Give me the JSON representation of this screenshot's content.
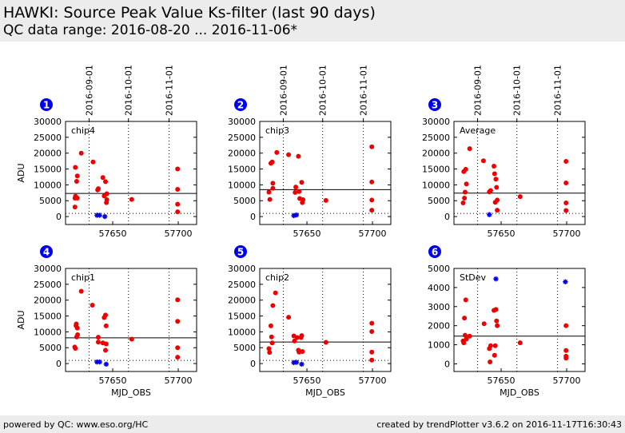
{
  "header": {
    "title": "HAWKI: Source Peak Value Ks-filter (last 90 days)",
    "subtitle": "QC data range: 2016-08-20 ... 2016-11-06*"
  },
  "footer": {
    "left": "powered by QC: www.eso.org/HC",
    "right": "created by trendPlotter v3.6.2 on 2016-11-17T16:30:43"
  },
  "colors": {
    "point": "#ee0000",
    "special_point": "#0000ee",
    "badge": "#0000ee",
    "header_bg": "#ececec"
  },
  "chart_data": {
    "type": "scatter",
    "xlabel": "MJD_OBS",
    "xlim": [
      57614,
      57714
    ],
    "x_ticks": [
      57650,
      57700
    ],
    "top_axis_dates": [
      {
        "label": "2016-09-01",
        "mjd": 57632
      },
      {
        "label": "2016-10-01",
        "mjd": 57662
      },
      {
        "label": "2016-11-01",
        "mjd": 57693
      }
    ],
    "grid": "dotted vertical lines at month starts",
    "panels": [
      {
        "number": "1",
        "label": "chip4",
        "ylabel": "ADU",
        "ylim": [
          -2500,
          30000
        ],
        "y_ticks": [
          0,
          5000,
          10000,
          15000,
          20000,
          25000,
          30000
        ],
        "reference_line": 7300,
        "dotted_line": 1000,
        "points": [
          {
            "x": 57621.2,
            "y": 3000
          },
          {
            "x": 57621.2,
            "y": 5800
          },
          {
            "x": 57621.5,
            "y": 15500
          },
          {
            "x": 57621.6,
            "y": 6400
          },
          {
            "x": 57622.5,
            "y": 11100
          },
          {
            "x": 57623,
            "y": 12800
          },
          {
            "x": 57623,
            "y": 5800
          },
          {
            "x": 57626,
            "y": 20000
          },
          {
            "x": 57635,
            "y": 17200
          },
          {
            "x": 57638.5,
            "y": 8400
          },
          {
            "x": 57639,
            "y": 8800
          },
          {
            "x": 57642.5,
            "y": 12300
          },
          {
            "x": 57643.5,
            "y": 6500
          },
          {
            "x": 57644.5,
            "y": 11000
          },
          {
            "x": 57645.2,
            "y": 4400
          },
          {
            "x": 57645.5,
            "y": 5300
          },
          {
            "x": 57645.5,
            "y": 7200
          },
          {
            "x": 57664.5,
            "y": 5400
          },
          {
            "x": 57699.5,
            "y": 15000
          },
          {
            "x": 57699.5,
            "y": 8600
          },
          {
            "x": 57699.5,
            "y": 3900
          },
          {
            "x": 57699.5,
            "y": 1500
          }
        ],
        "special_points": [
          {
            "x": 57638,
            "y": 400
          },
          {
            "x": 57640,
            "y": 400
          },
          {
            "x": 57644,
            "y": 0
          }
        ]
      },
      {
        "number": "2",
        "label": "chip3",
        "ylabel": "",
        "ylim": [
          -2500,
          30000
        ],
        "y_ticks": [
          0,
          5000,
          10000,
          15000,
          20000,
          25000,
          30000
        ],
        "reference_line": 8500,
        "dotted_line": 1000,
        "points": [
          {
            "x": 57621,
            "y": 7700
          },
          {
            "x": 57621.7,
            "y": 5400
          },
          {
            "x": 57622.5,
            "y": 16800
          },
          {
            "x": 57623.5,
            "y": 17200
          },
          {
            "x": 57624,
            "y": 10500
          },
          {
            "x": 57624,
            "y": 8900
          },
          {
            "x": 57627,
            "y": 20200
          },
          {
            "x": 57636,
            "y": 19500
          },
          {
            "x": 57641,
            "y": 7600
          },
          {
            "x": 57641.5,
            "y": 9300
          },
          {
            "x": 57643.5,
            "y": 19000
          },
          {
            "x": 57644,
            "y": 7900
          },
          {
            "x": 57644.5,
            "y": 5700
          },
          {
            "x": 57646,
            "y": 10800
          },
          {
            "x": 57646.5,
            "y": 4400
          },
          {
            "x": 57647,
            "y": 5300
          },
          {
            "x": 57664.5,
            "y": 5100
          },
          {
            "x": 57699.5,
            "y": 22000
          },
          {
            "x": 57699.5,
            "y": 10900
          },
          {
            "x": 57699.5,
            "y": 5200
          },
          {
            "x": 57699.5,
            "y": 2000
          }
        ],
        "special_points": [
          {
            "x": 57640,
            "y": 300
          },
          {
            "x": 57642,
            "y": 500
          }
        ]
      },
      {
        "number": "3",
        "label": "Average",
        "ylabel": "",
        "ylim": [
          -2500,
          30000
        ],
        "y_ticks": [
          0,
          5000,
          10000,
          15000,
          20000,
          25000,
          30000
        ],
        "reference_line": 7400,
        "dotted_line": 1000,
        "points": [
          {
            "x": 57621,
            "y": 4300
          },
          {
            "x": 57621.5,
            "y": 14200
          },
          {
            "x": 57622,
            "y": 5800
          },
          {
            "x": 57622.5,
            "y": 7700
          },
          {
            "x": 57623,
            "y": 14900
          },
          {
            "x": 57623.5,
            "y": 10300
          },
          {
            "x": 57626,
            "y": 21400
          },
          {
            "x": 57636.5,
            "y": 17600
          },
          {
            "x": 57641,
            "y": 7800
          },
          {
            "x": 57642,
            "y": 8200
          },
          {
            "x": 57644.5,
            "y": 15900
          },
          {
            "x": 57645,
            "y": 13500
          },
          {
            "x": 57645.5,
            "y": 4500
          },
          {
            "x": 57646,
            "y": 11800
          },
          {
            "x": 57646.5,
            "y": 9200
          },
          {
            "x": 57647,
            "y": 5200
          },
          {
            "x": 57647,
            "y": 2000
          },
          {
            "x": 57664.5,
            "y": 6300
          },
          {
            "x": 57699.5,
            "y": 17400
          },
          {
            "x": 57699.5,
            "y": 10600
          },
          {
            "x": 57699.5,
            "y": 4300
          },
          {
            "x": 57699.5,
            "y": 1900
          }
        ],
        "special_points": [
          {
            "x": 57641,
            "y": 600
          }
        ]
      },
      {
        "number": "4",
        "label": "chip1",
        "ylabel": "ADU",
        "ylim": [
          -2500,
          30000
        ],
        "y_ticks": [
          0,
          5000,
          10000,
          15000,
          20000,
          25000,
          30000
        ],
        "reference_line": 8100,
        "dotted_line": 1000,
        "points": [
          {
            "x": 57621,
            "y": 5200
          },
          {
            "x": 57621.5,
            "y": 4800
          },
          {
            "x": 57622,
            "y": 12000
          },
          {
            "x": 57622.2,
            "y": 12500
          },
          {
            "x": 57622.5,
            "y": 8400
          },
          {
            "x": 57623,
            "y": 11200
          },
          {
            "x": 57623.2,
            "y": 9100
          },
          {
            "x": 57626,
            "y": 22800
          },
          {
            "x": 57634.5,
            "y": 18400
          },
          {
            "x": 57639,
            "y": 8300
          },
          {
            "x": 57639,
            "y": 6800
          },
          {
            "x": 57642.5,
            "y": 6500
          },
          {
            "x": 57643.5,
            "y": 14500
          },
          {
            "x": 57644.5,
            "y": 15300
          },
          {
            "x": 57645,
            "y": 11900
          },
          {
            "x": 57645,
            "y": 6200
          },
          {
            "x": 57664.5,
            "y": 7700
          },
          {
            "x": 57699.5,
            "y": 20100
          },
          {
            "x": 57699.5,
            "y": 13300
          },
          {
            "x": 57699.5,
            "y": 5000
          },
          {
            "x": 57699.5,
            "y": 2000
          },
          {
            "x": 57644.5,
            "y": 4200
          }
        ],
        "special_points": [
          {
            "x": 57638,
            "y": 500
          },
          {
            "x": 57640,
            "y": 500
          },
          {
            "x": 57645,
            "y": -200
          }
        ]
      },
      {
        "number": "5",
        "label": "chip2",
        "ylabel": "",
        "ylim": [
          -2500,
          30000
        ],
        "y_ticks": [
          0,
          5000,
          10000,
          15000,
          20000,
          25000,
          30000
        ],
        "reference_line": 6800,
        "dotted_line": 1000,
        "points": [
          {
            "x": 57621,
            "y": 4700
          },
          {
            "x": 57621.5,
            "y": 3500
          },
          {
            "x": 57622.5,
            "y": 11900
          },
          {
            "x": 57623,
            "y": 8400
          },
          {
            "x": 57623.5,
            "y": 6500
          },
          {
            "x": 57624,
            "y": 18300
          },
          {
            "x": 57626,
            "y": 22300
          },
          {
            "x": 57636,
            "y": 14600
          },
          {
            "x": 57640,
            "y": 8700
          },
          {
            "x": 57640.5,
            "y": 7100
          },
          {
            "x": 57642.5,
            "y": 8200
          },
          {
            "x": 57643.5,
            "y": 4200
          },
          {
            "x": 57644,
            "y": 3600
          },
          {
            "x": 57645.5,
            "y": 8200
          },
          {
            "x": 57646,
            "y": 8800
          },
          {
            "x": 57646.5,
            "y": 3800
          },
          {
            "x": 57664.5,
            "y": 6700
          },
          {
            "x": 57699.5,
            "y": 12700
          },
          {
            "x": 57699.5,
            "y": 10100
          },
          {
            "x": 57699.5,
            "y": 3600
          },
          {
            "x": 57699.5,
            "y": 1100
          }
        ],
        "special_points": [
          {
            "x": 57640,
            "y": 300
          },
          {
            "x": 57642,
            "y": 400
          },
          {
            "x": 57646,
            "y": -200
          }
        ]
      },
      {
        "number": "6",
        "label": "StDev",
        "ylabel": "",
        "ylim": [
          -400,
          5000
        ],
        "y_ticks": [
          0,
          1000,
          2000,
          3000,
          4000,
          5000
        ],
        "reference_line": 1450,
        "dotted_line": null,
        "points": [
          {
            "x": 57621,
            "y": 1200
          },
          {
            "x": 57621.5,
            "y": 1100
          },
          {
            "x": 57622,
            "y": 2400
          },
          {
            "x": 57622.5,
            "y": 1500
          },
          {
            "x": 57623,
            "y": 3350
          },
          {
            "x": 57623.5,
            "y": 1300
          },
          {
            "x": 57626,
            "y": 1450
          },
          {
            "x": 57637,
            "y": 2100
          },
          {
            "x": 57641,
            "y": 800
          },
          {
            "x": 57642,
            "y": 950
          },
          {
            "x": 57641.5,
            "y": 100
          },
          {
            "x": 57644.5,
            "y": 2800
          },
          {
            "x": 57645,
            "y": 450
          },
          {
            "x": 57645.5,
            "y": 950
          },
          {
            "x": 57646,
            "y": 2850
          },
          {
            "x": 57646.5,
            "y": 2250
          },
          {
            "x": 57647,
            "y": 2000
          },
          {
            "x": 57664.5,
            "y": 1100
          },
          {
            "x": 57699.5,
            "y": 2000
          },
          {
            "x": 57699.5,
            "y": 700
          },
          {
            "x": 57699.5,
            "y": 400
          },
          {
            "x": 57699.5,
            "y": 300
          }
        ],
        "special_points": [
          {
            "x": 57646,
            "y": 4450
          },
          {
            "x": 57699,
            "y": 4300
          }
        ]
      }
    ]
  }
}
